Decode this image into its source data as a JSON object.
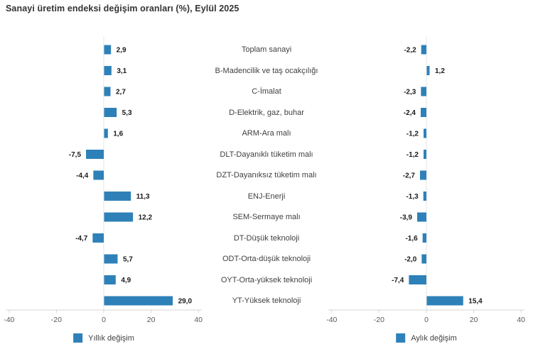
{
  "title": "Sanayi üretim endeksi değişim oranları (%), Eylül 2025",
  "categories": [
    "Toplam sanayi",
    "B-Madencilik ve taş ocakçılığı",
    "C-İmalat",
    "D-Elektrik, gaz, buhar",
    "ARM-Ara malı",
    "DLT-Dayanıklı tüketim malı",
    "DZT-Dayanıksız tüketim malı",
    "ENJ-Enerji",
    "SEM-Sermaye malı",
    "DT-Düşük teknoloji",
    "ODT-Orta-düşük teknoloji",
    "OYT-Orta-yüksek teknoloji",
    "YT-Yüksek teknoloji"
  ],
  "legends": {
    "annual": "Yıllık değişim",
    "monthly": "Aylık değişim"
  },
  "colors": {
    "bar": "#2E81B8",
    "axis": "#d6d6d6",
    "zero_line": "#e4e4e4",
    "tick_label": "#595959",
    "value_label": "#1a1a1a",
    "category_label": "#404040",
    "title": "#333333"
  },
  "chart_data": [
    {
      "type": "bar",
      "orientation": "horizontal",
      "name": "annual-change",
      "legend": "Yıllık değişim",
      "categories": [
        "Toplam sanayi",
        "B-Madencilik ve taş ocakçılığı",
        "C-İmalat",
        "D-Elektrik, gaz, buhar",
        "ARM-Ara malı",
        "DLT-Dayanıklı tüketim malı",
        "DZT-Dayanıksız tüketim malı",
        "ENJ-Enerji",
        "SEM-Sermaye malı",
        "DT-Düşük teknoloji",
        "ODT-Orta-düşük teknoloji",
        "OYT-Orta-yüksek teknoloji",
        "YT-Yüksek teknoloji"
      ],
      "values": [
        2.9,
        3.1,
        2.7,
        5.3,
        1.6,
        -7.5,
        -4.4,
        11.3,
        12.2,
        -4.7,
        5.7,
        4.9,
        29.0
      ],
      "value_labels": [
        "2,9",
        "3,1",
        "2,7",
        "5,3",
        "1,6",
        "-7,5",
        "-4,4",
        "11,3",
        "12,2",
        "-4,7",
        "5,7",
        "4,9",
        "29,0"
      ],
      "xlim": [
        -40,
        40
      ],
      "x_ticks": [
        -40,
        -20,
        0,
        20,
        40
      ],
      "grid": false,
      "legend_position": "bottom"
    },
    {
      "type": "bar",
      "orientation": "horizontal",
      "name": "monthly-change",
      "legend": "Aylık değişim",
      "categories": [
        "Toplam sanayi",
        "B-Madencilik ve taş ocakçılığı",
        "C-İmalat",
        "D-Elektrik, gaz, buhar",
        "ARM-Ara malı",
        "DLT-Dayanıklı tüketim malı",
        "DZT-Dayanıksız tüketim malı",
        "ENJ-Enerji",
        "SEM-Sermaye malı",
        "DT-Düşük teknoloji",
        "ODT-Orta-düşük teknoloji",
        "OYT-Orta-yüksek teknoloji",
        "YT-Yüksek teknoloji"
      ],
      "values": [
        -2.2,
        1.2,
        -2.3,
        -2.4,
        -1.2,
        -1.2,
        -2.7,
        -1.3,
        -3.9,
        -1.6,
        -2.0,
        -7.4,
        15.4
      ],
      "value_labels": [
        "-2,2",
        "1,2",
        "-2,3",
        "-2,4",
        "-1,2",
        "-1,2",
        "-2,7",
        "-1,3",
        "-3,9",
        "-1,6",
        "-2,0",
        "-7,4",
        "15,4"
      ],
      "xlim": [
        -40,
        40
      ],
      "x_ticks": [
        -40,
        -20,
        0,
        20,
        40
      ],
      "grid": false,
      "legend_position": "bottom"
    }
  ]
}
